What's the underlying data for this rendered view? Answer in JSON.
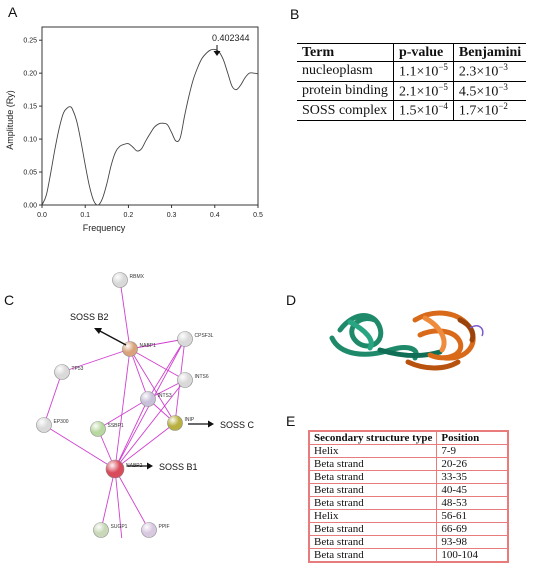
{
  "panels": {
    "a": "A",
    "b": "B",
    "c": "C",
    "d": "D",
    "e": "E"
  },
  "chart_data": {
    "type": "line",
    "xlabel": "Frequency",
    "ylabel": "Amplitude (Ry)",
    "xlim": [
      0.0,
      0.5
    ],
    "ylim": [
      0.0,
      0.27
    ],
    "x_ticks": [
      "0.0",
      "0.1",
      "0.2",
      "0.3",
      "0.4",
      "0.5"
    ],
    "y_ticks": [
      "0.00",
      "0.05",
      "0.10",
      "0.15",
      "0.20",
      "0.25"
    ],
    "annotation": {
      "text": "0.402344",
      "x": 0.402,
      "y": 0.235
    },
    "series": [
      {
        "x": [
          0.0,
          0.01,
          0.02,
          0.03,
          0.04,
          0.05,
          0.06,
          0.065,
          0.07,
          0.08,
          0.09,
          0.1,
          0.11,
          0.12,
          0.13,
          0.14,
          0.15,
          0.16,
          0.17,
          0.18,
          0.19,
          0.2,
          0.21,
          0.22,
          0.23,
          0.24,
          0.25,
          0.26,
          0.27,
          0.28,
          0.29,
          0.3,
          0.31,
          0.32,
          0.33,
          0.34,
          0.35,
          0.36,
          0.37,
          0.38,
          0.39,
          0.4,
          0.41,
          0.42,
          0.43,
          0.44,
          0.45,
          0.46,
          0.47,
          0.48,
          0.49,
          0.5
        ],
        "y": [
          0.0,
          0.015,
          0.048,
          0.085,
          0.117,
          0.14,
          0.148,
          0.149,
          0.146,
          0.128,
          0.097,
          0.061,
          0.028,
          0.006,
          0.0,
          0.01,
          0.032,
          0.06,
          0.08,
          0.089,
          0.092,
          0.093,
          0.088,
          0.082,
          0.085,
          0.097,
          0.108,
          0.118,
          0.123,
          0.124,
          0.122,
          0.11,
          0.097,
          0.102,
          0.135,
          0.165,
          0.19,
          0.208,
          0.222,
          0.23,
          0.235,
          0.236,
          0.232,
          0.22,
          0.2,
          0.18,
          0.175,
          0.182,
          0.193,
          0.2,
          0.2,
          0.199
        ]
      }
    ]
  },
  "tableB": {
    "headers": [
      "Term",
      "p-value",
      "Benjamini"
    ],
    "rows": [
      [
        "nucleoplasm",
        "1.1×10-5",
        "2.3×10-3"
      ],
      [
        "protein binding",
        "2.1×10-5",
        "4.5×10-3"
      ],
      [
        "SOSS complex",
        "1.5×10-4",
        "1.7×10-2"
      ]
    ]
  },
  "network": {
    "nodes": [
      {
        "label": "RBMX",
        "color": "#d9d9d9",
        "x": 0.0,
        "y": 0.0
      },
      {
        "label": "NABP1",
        "color": "#d9a27a"
      },
      {
        "label": "CPSF3L",
        "color": "#d9d9d9"
      },
      {
        "label": "TP53",
        "color": "#d9d9d9"
      },
      {
        "label": "INTS6",
        "color": "#d9d9d9"
      },
      {
        "label": "INTS3",
        "color": "#c8c0d8"
      },
      {
        "label": "EP300",
        "color": "#d9d9d9"
      },
      {
        "label": "SSBP1",
        "color": "#b8d8a0"
      },
      {
        "label": "INIP",
        "color": "#b8b040"
      },
      {
        "label": "NABP2",
        "color": "#d94a5a"
      },
      {
        "label": "SUGP1",
        "color": "#c8d8b8"
      },
      {
        "label": "PPIF",
        "color": "#d8c8e0"
      },
      {
        "label": "RBMS1",
        "color": "#d9d9d9"
      }
    ],
    "callouts": {
      "b2": "SOSS B2",
      "c": "SOSS C",
      "b1": "SOSS B1"
    },
    "edge_color": "#d040d0"
  },
  "tableE": {
    "headers": [
      "Secondary structure type",
      "Position"
    ],
    "rows": [
      [
        "Helix",
        "7-9"
      ],
      [
        "Beta strand",
        "20-26"
      ],
      [
        "Beta strand",
        "33-35"
      ],
      [
        "Beta strand",
        "40-45"
      ],
      [
        "Beta strand",
        "48-53"
      ],
      [
        "Helix",
        "56-61"
      ],
      [
        "Beta strand",
        "66-69"
      ],
      [
        "Beta strand",
        "93-98"
      ],
      [
        "Beta strand",
        "100-104"
      ]
    ]
  }
}
